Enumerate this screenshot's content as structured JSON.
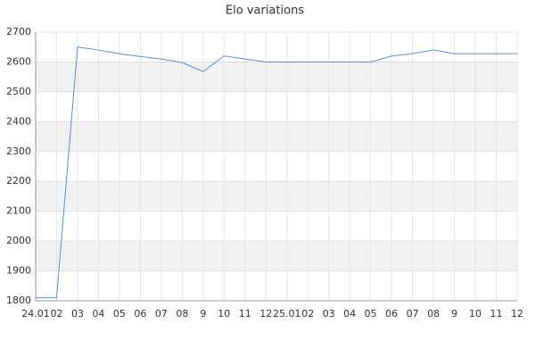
{
  "chart_data": {
    "type": "line",
    "title": "Elo variations",
    "categories": [
      "24.01",
      "02",
      "03",
      "04",
      "05",
      "06",
      "07",
      "08",
      "9",
      "10",
      "11",
      "12",
      "25.01",
      "02",
      "03",
      "04",
      "05",
      "06",
      "07",
      "08",
      "9",
      "10",
      "11",
      "12"
    ],
    "series": [
      {
        "name": "Elo",
        "color": "#5b8fd9",
        "values": [
          1810,
          1810,
          2650,
          2640,
          2628,
          2618,
          2610,
          2598,
          2568,
          2620,
          2610,
          2600,
          2600,
          2600,
          2600,
          2600,
          2600,
          2620,
          2628,
          2640,
          2628,
          2628,
          2628,
          2628
        ]
      }
    ],
    "ylim": [
      1800,
      2700
    ],
    "yticks": [
      1800,
      1900,
      2000,
      2100,
      2200,
      2300,
      2400,
      2500,
      2600,
      2700
    ],
    "grid": true
  }
}
